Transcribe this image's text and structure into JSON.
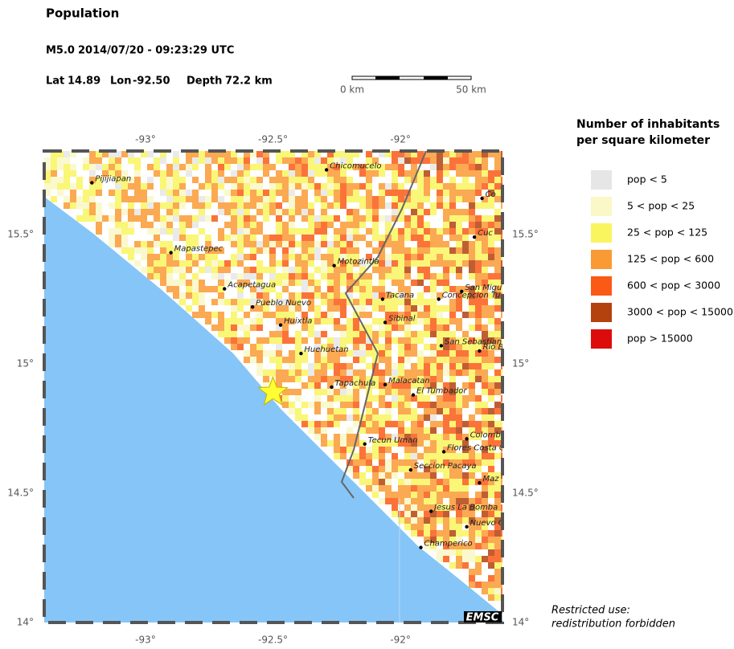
{
  "map": {
    "title": "Population",
    "event": {
      "magnitude": "M5.0",
      "datetime": "2014/07/20 - 09:23:29 UTC",
      "lat_label": "Lat",
      "lat": 14.89,
      "lon_label": "Lon",
      "lon": {
        "value": -92.5,
        "label": "-92.50"
      },
      "depth_label": "Depth",
      "depth": {
        "value": 72.2,
        "label": "72.2 km"
      }
    },
    "scale_bar": [
      "0 km",
      "50 km"
    ],
    "lonlim": [
      -93.397,
      -91.6
    ],
    "latlim": [
      14,
      15.823
    ],
    "lon_ticks": [
      {
        "value": -93,
        "label": "-93°"
      },
      {
        "value": -92.5,
        "label": "-92.5°"
      },
      {
        "value": -92,
        "label": "-92°"
      }
    ],
    "lat_ticks": [
      {
        "value": 15.5,
        "label": "15.5°"
      },
      {
        "value": 15,
        "label": "15°"
      },
      {
        "value": 14.5,
        "label": "14.5°"
      },
      {
        "value": 14,
        "label": "14°"
      }
    ],
    "legend": {
      "title": [
        "Number of inhabitants",
        "per square kilometer"
      ],
      "items": [
        {
          "label": "pop < 5",
          "color": "#e6e6e6"
        },
        {
          "label": "5 < pop < 25",
          "color": "#f9f8c6"
        },
        {
          "label": "25 < pop < 125",
          "color": "#f9f55f"
        },
        {
          "label": "125 < pop < 600",
          "color": "#fa9a34"
        },
        {
          "label": "600 < pop < 3000",
          "color": "#fa5a16"
        },
        {
          "label": "3000 < pop < 15000",
          "color": "#b4420f"
        },
        {
          "label": "pop > 15000",
          "color": "#dc0c0c"
        }
      ]
    },
    "cities": [
      {
        "name": "Pijijiapan",
        "lon": -93.21,
        "lat": 15.7
      },
      {
        "name": "Mapastepec",
        "lon": -92.9,
        "lat": 15.43
      },
      {
        "name": "Acapetagua",
        "lon": -92.69,
        "lat": 15.29
      },
      {
        "name": "Pueblo Nuevo",
        "lon": -92.58,
        "lat": 15.22
      },
      {
        "name": "Huixtla",
        "lon": -92.47,
        "lat": 15.15
      },
      {
        "name": "Huehuetan",
        "lon": -92.39,
        "lat": 15.04
      },
      {
        "name": "Chicomucelo",
        "lon": -92.29,
        "lat": 15.75
      },
      {
        "name": "Motozintla",
        "lon": -92.26,
        "lat": 15.38
      },
      {
        "name": "Tacana",
        "lon": -92.07,
        "lat": 15.25
      },
      {
        "name": "Sibinal",
        "lon": -92.06,
        "lat": 15.16
      },
      {
        "name": "Tapachula",
        "lon": -92.27,
        "lat": 14.91
      },
      {
        "name": "Malacatan",
        "lon": -92.06,
        "lat": 14.92
      },
      {
        "name": "El Tumbador",
        "lon": -91.95,
        "lat": 14.88
      },
      {
        "name": "Tecun Uman",
        "lon": -92.14,
        "lat": 14.69
      },
      {
        "name": "Seccion Pacaya",
        "lon": -91.96,
        "lat": 14.59
      },
      {
        "name": "Jesus La Bomba",
        "lon": -91.88,
        "lat": 14.43
      },
      {
        "name": "Champerico",
        "lon": -91.92,
        "lat": 14.29
      },
      {
        "name": "Concepcion Tu",
        "lon": -91.85,
        "lat": 15.25
      },
      {
        "name": "San Migu",
        "lon": -91.76,
        "lat": 15.28
      },
      {
        "name": "San Sebastian",
        "lon": -91.84,
        "lat": 15.07
      },
      {
        "name": "Rio B",
        "lon": -91.69,
        "lat": 15.05
      },
      {
        "name": "Colomb",
        "lon": -91.74,
        "lat": 14.71
      },
      {
        "name": "Flores Costa C",
        "lon": -91.83,
        "lat": 14.66
      },
      {
        "name": "Maz",
        "lon": -91.69,
        "lat": 14.54
      },
      {
        "name": "Nuevo C",
        "lon": -91.74,
        "lat": 14.37
      },
      {
        "name": "Co",
        "lon": -91.68,
        "lat": 15.64
      },
      {
        "name": "Cuc",
        "lon": -91.71,
        "lat": 15.49
      }
    ],
    "logo": "EMSC",
    "footer": [
      "Restricted use:",
      "redistribution forbidden"
    ]
  }
}
